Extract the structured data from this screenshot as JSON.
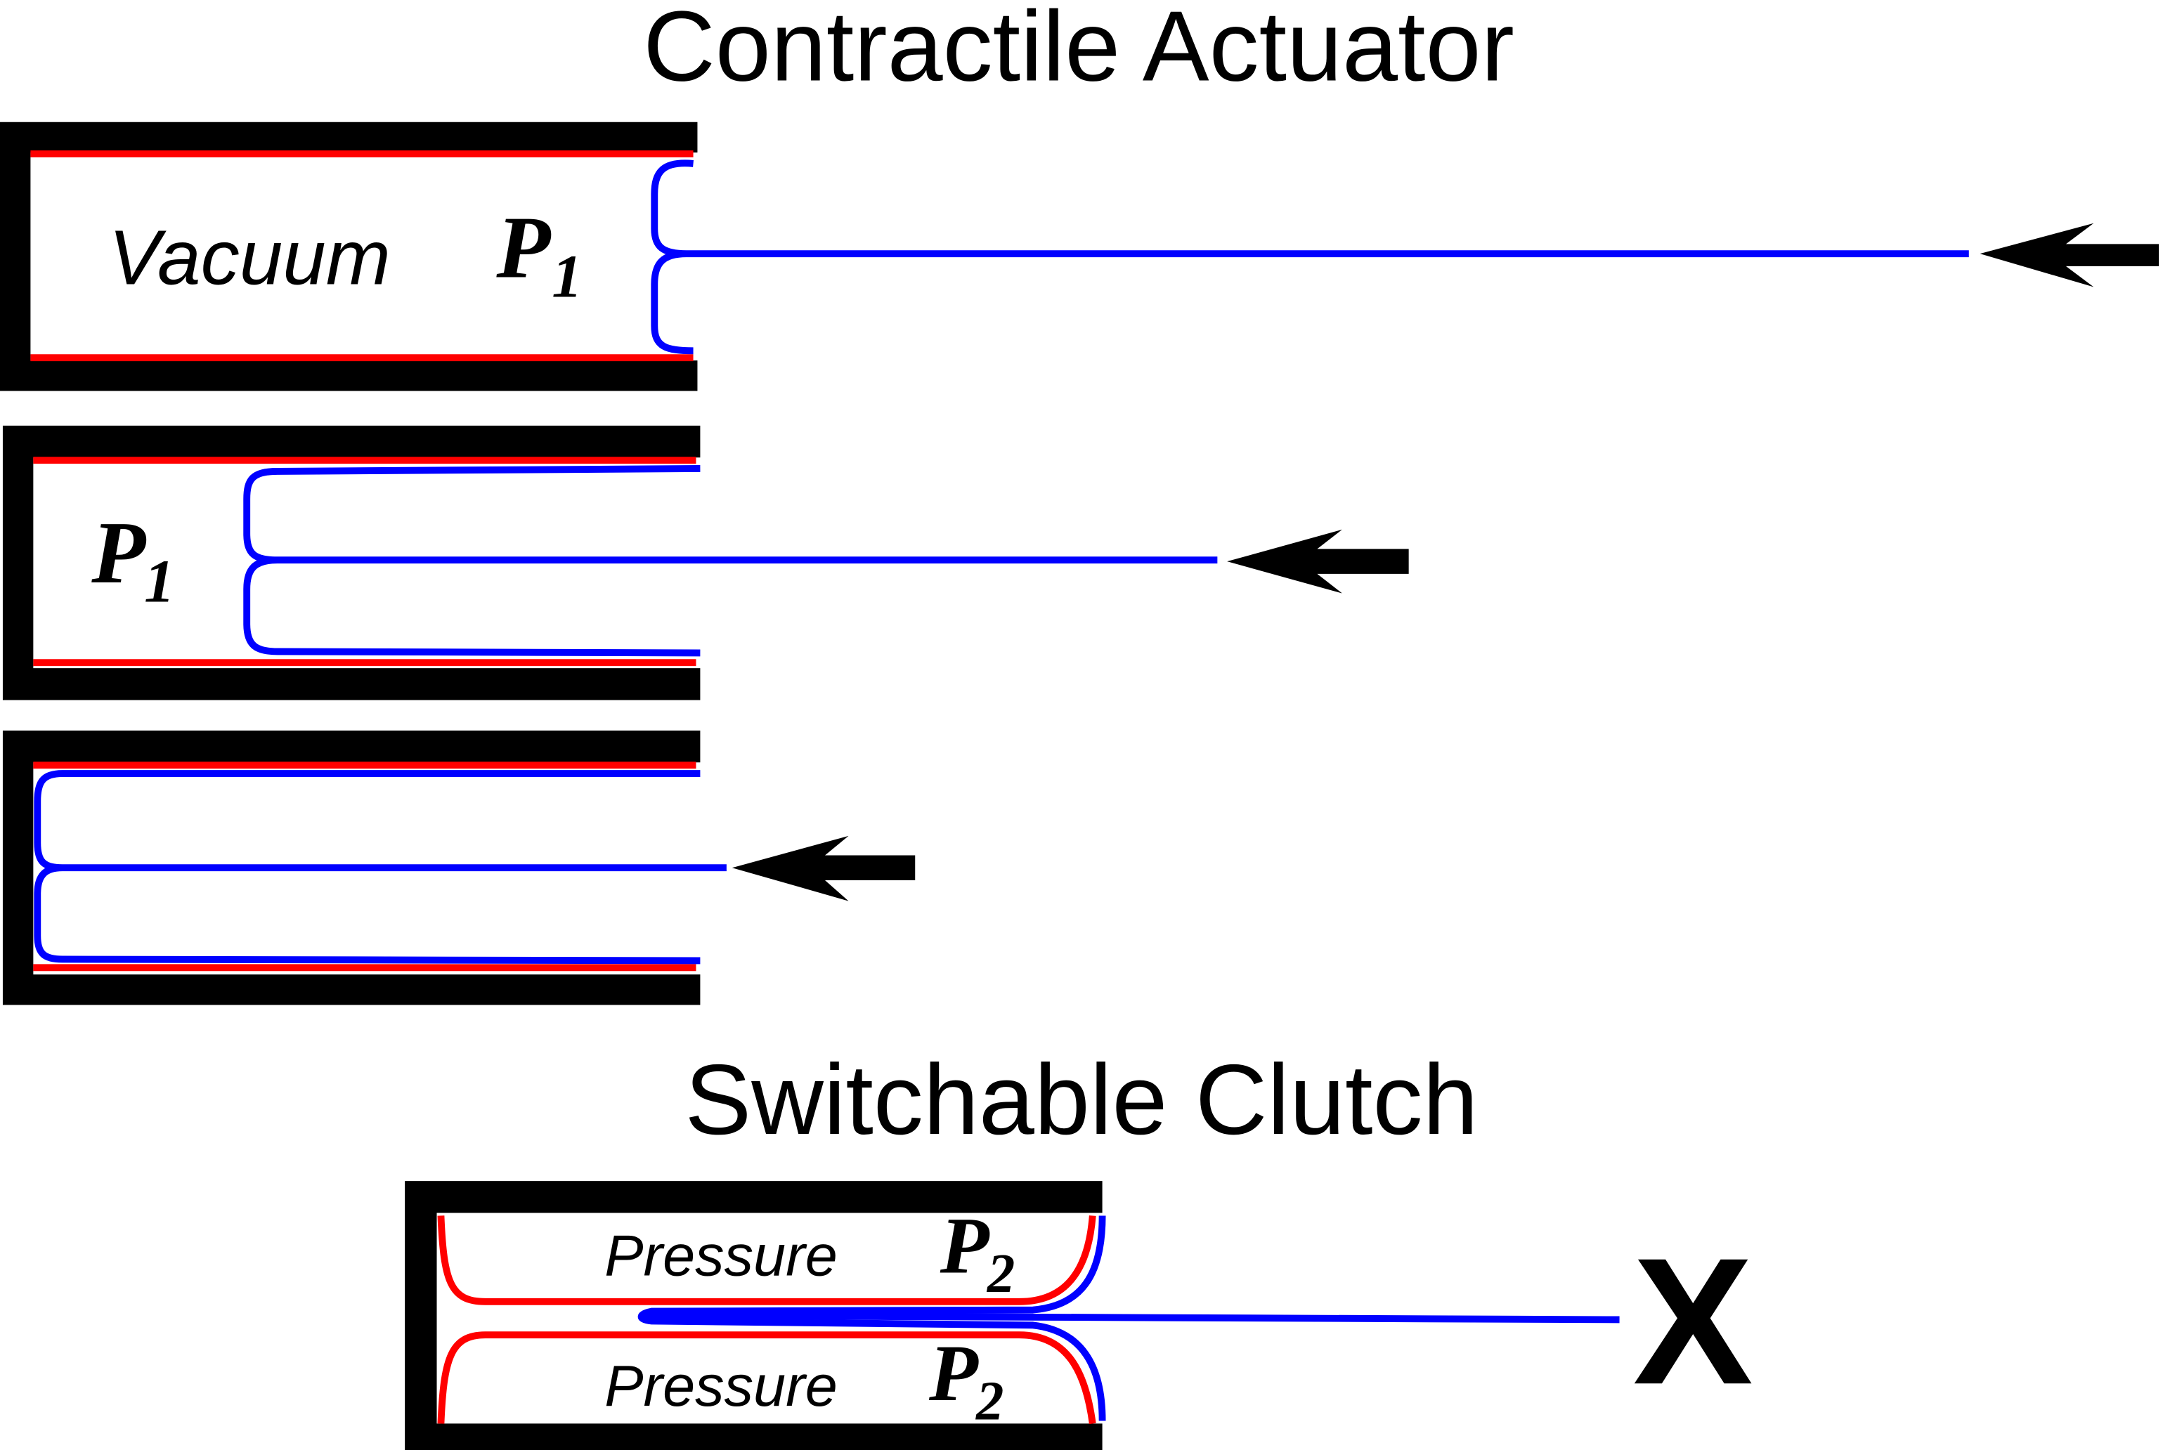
{
  "title": "Contractile Actuator",
  "actuator_states": [
    {
      "medium": "Vacuum",
      "pressure": {
        "symbol": "P",
        "subscript": "1"
      }
    },
    {
      "pressure": {
        "symbol": "P",
        "subscript": "1"
      }
    }
  ],
  "clutch": {
    "title": "Switchable Clutch",
    "chambers": [
      {
        "medium": "Pressure",
        "pressure": {
          "symbol": "P",
          "subscript": "2"
        }
      },
      {
        "medium": "Pressure",
        "pressure": {
          "symbol": "P",
          "subscript": "2"
        }
      }
    ],
    "lock_mark": "X"
  }
}
